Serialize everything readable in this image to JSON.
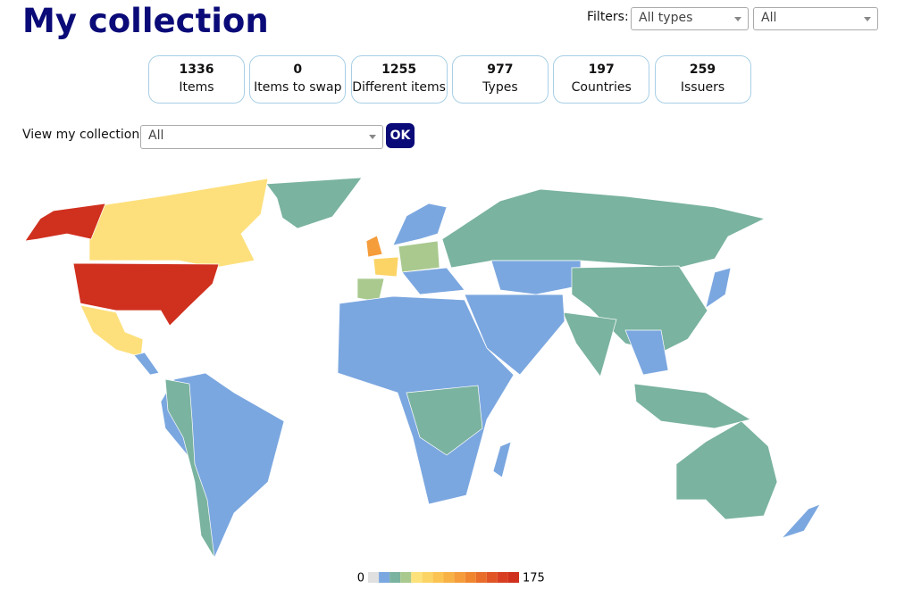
{
  "header": {
    "title": "My collection",
    "filters_label": "Filters:",
    "type_filter": "All types",
    "scope_filter": "All"
  },
  "stats": [
    {
      "value": 1336,
      "label": "Items"
    },
    {
      "value": 0,
      "label": "Items to swap"
    },
    {
      "value": 1255,
      "label": "Different items"
    },
    {
      "value": 977,
      "label": "Types"
    },
    {
      "value": 197,
      "label": "Countries"
    },
    {
      "value": 259,
      "label": "Issuers"
    }
  ],
  "view": {
    "label": "View my collection:",
    "selected": "All",
    "button": "OK"
  },
  "legend": {
    "min": 0,
    "max": 175,
    "colors": [
      "#e0e0e0",
      "#7ba7e0",
      "#7ab3a0",
      "#a9c98f",
      "#fde27c",
      "#fcd466",
      "#fbc452",
      "#f8b145",
      "#f59c3b",
      "#f08530",
      "#e86c2a",
      "#e05426",
      "#d83f22",
      "#d0301e"
    ]
  }
}
